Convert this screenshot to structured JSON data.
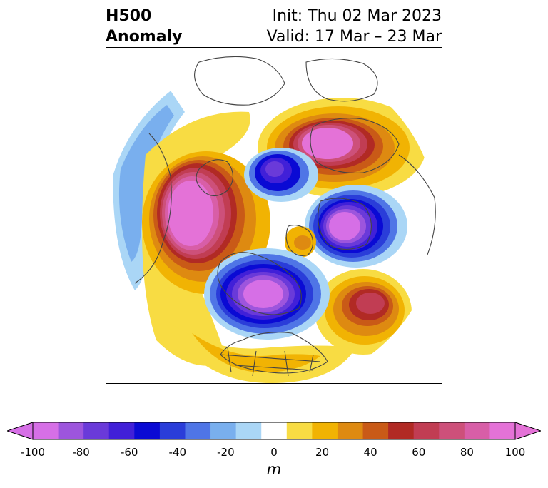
{
  "title": {
    "variable": "H500",
    "field": "Anomaly",
    "init": "Init: Thu 02 Mar 2023",
    "valid": "Valid: 17 Mar – 23 Mar"
  },
  "map": {
    "projection": "north-polar-stereographic",
    "basemap": "coastlines and political borders"
  },
  "anomaly_centers": [
    {
      "sign": "positive",
      "peak_m": 100,
      "region": "Gulf of Alaska / Northeast Pacific"
    },
    {
      "sign": "positive",
      "peak_m": 100,
      "region": "Northern Russia / Barents-Kara"
    },
    {
      "sign": "positive",
      "peak_m": 70,
      "region": "North Atlantic"
    },
    {
      "sign": "positive",
      "peak_m": 40,
      "region": "Greenland"
    },
    {
      "sign": "negative",
      "peak_m": -100,
      "region": "Northern Canada / Hudson Bay"
    },
    {
      "sign": "negative",
      "peak_m": -100,
      "region": "Scandinavia / Norwegian Sea"
    },
    {
      "sign": "negative",
      "peak_m": -80,
      "region": "East Siberia / Arctic"
    },
    {
      "sign": "negative",
      "peak_m": -30,
      "region": "Western North Pacific"
    }
  ],
  "colorbar": {
    "unit": "m",
    "ticks": [
      "-100",
      "-80",
      "-60",
      "-40",
      "-20",
      "0",
      "20",
      "40",
      "60",
      "80",
      "100"
    ],
    "levels": [
      -100,
      -90,
      -80,
      -70,
      -60,
      -50,
      -40,
      -30,
      -20,
      -10,
      10,
      20,
      30,
      40,
      50,
      60,
      70,
      80,
      90,
      100
    ],
    "colors": [
      "#d66fe6",
      "#9d55dd",
      "#6a3ad9",
      "#4120d8",
      "#0a0ad4",
      "#2a3dd9",
      "#4f75e6",
      "#79afee",
      "#aad6f6",
      "#ffffff",
      "#f8dc43",
      "#f1b303",
      "#de8a11",
      "#c95a17",
      "#b12a24",
      "#c13d53",
      "#cd507a",
      "#d85ea7",
      "#e472d7"
    ],
    "extend": "both"
  }
}
